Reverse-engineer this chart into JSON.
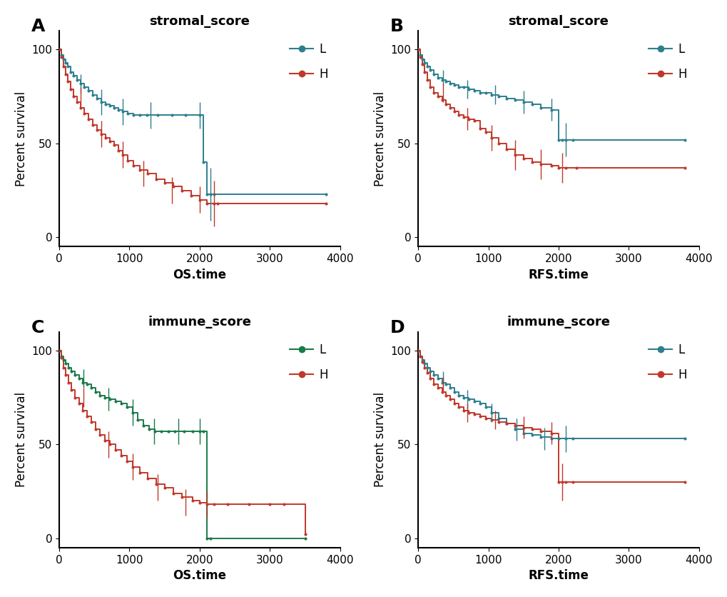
{
  "panels": [
    {
      "label": "A",
      "title": "stromal_score",
      "xlabel": "OS.time",
      "ylabel": "Percent survival",
      "xlim": [
        0,
        4000
      ],
      "ylim": [
        -5,
        110
      ],
      "xticks": [
        0,
        1000,
        2000,
        3000,
        4000
      ],
      "yticks": [
        0,
        50,
        100
      ],
      "L_color": "#2e7f8e",
      "H_color": "#c0392b",
      "L_curve": {
        "x": [
          0,
          30,
          60,
          90,
          120,
          160,
          200,
          250,
          300,
          360,
          420,
          480,
          540,
          600,
          660,
          720,
          780,
          840,
          900,
          980,
          1060,
          1150,
          1250,
          1400,
          1600,
          1800,
          2000,
          2050,
          2100,
          2150,
          2200,
          3800
        ],
        "y": [
          100,
          97,
          95,
          93,
          91,
          88,
          86,
          84,
          82,
          80,
          78,
          76,
          74,
          72,
          71,
          70,
          69,
          68,
          67,
          66,
          65,
          65,
          65,
          65,
          65,
          65,
          65,
          40,
          23,
          23,
          23,
          23
        ],
        "eb_x": [
          300,
          600,
          900,
          1300,
          2000,
          2150
        ],
        "eb_y": [
          82,
          72,
          67,
          65,
          65,
          23
        ],
        "eb_e": [
          5,
          7,
          7,
          7,
          7,
          14
        ]
      },
      "H_curve": {
        "x": [
          0,
          30,
          60,
          90,
          120,
          160,
          200,
          250,
          300,
          360,
          420,
          480,
          540,
          600,
          660,
          720,
          780,
          840,
          900,
          980,
          1060,
          1150,
          1260,
          1380,
          1500,
          1620,
          1750,
          1880,
          2000,
          2100,
          2200,
          2250,
          3800
        ],
        "y": [
          100,
          96,
          91,
          87,
          83,
          79,
          75,
          72,
          69,
          66,
          63,
          60,
          57,
          55,
          53,
          51,
          49,
          46,
          44,
          41,
          38,
          36,
          34,
          31,
          29,
          27,
          25,
          22,
          20,
          18,
          18,
          18,
          18
        ],
        "eb_x": [
          300,
          600,
          900,
          1200,
          1600,
          2000,
          2200
        ],
        "eb_y": [
          75,
          55,
          44,
          34,
          25,
          20,
          18
        ],
        "eb_e": [
          5,
          7,
          7,
          7,
          7,
          7,
          12
        ]
      }
    },
    {
      "label": "B",
      "title": "stromal_score",
      "xlabel": "RFS.time",
      "ylabel": "Percent survival",
      "xlim": [
        0,
        4000
      ],
      "ylim": [
        -5,
        110
      ],
      "xticks": [
        0,
        1000,
        2000,
        3000,
        4000
      ],
      "yticks": [
        0,
        50,
        100
      ],
      "L_color": "#2e7f8e",
      "H_color": "#c0392b",
      "L_curve": {
        "x": [
          0,
          30,
          60,
          90,
          130,
          170,
          220,
          280,
          340,
          400,
          460,
          520,
          580,
          650,
          720,
          800,
          880,
          960,
          1050,
          1150,
          1260,
          1380,
          1500,
          1620,
          1750,
          1900,
          2000,
          2050,
          2100,
          2200,
          3800
        ],
        "y": [
          100,
          97,
          95,
          93,
          91,
          89,
          87,
          85,
          84,
          83,
          82,
          81,
          80,
          80,
          79,
          78,
          77,
          77,
          76,
          75,
          74,
          73,
          72,
          71,
          69,
          68,
          52,
          52,
          52,
          52,
          52
        ],
        "eb_x": [
          350,
          700,
          1100,
          1500,
          1900,
          2100
        ],
        "eb_y": [
          85,
          79,
          76,
          72,
          68,
          52
        ],
        "eb_e": [
          4,
          5,
          5,
          6,
          6,
          9
        ]
      },
      "H_curve": {
        "x": [
          0,
          30,
          60,
          90,
          130,
          170,
          220,
          280,
          340,
          400,
          460,
          520,
          580,
          650,
          720,
          800,
          880,
          960,
          1050,
          1150,
          1260,
          1380,
          1500,
          1620,
          1750,
          1900,
          2000,
          2100,
          2250,
          3800
        ],
        "y": [
          100,
          96,
          92,
          88,
          84,
          80,
          77,
          75,
          73,
          71,
          69,
          67,
          65,
          64,
          63,
          62,
          58,
          56,
          53,
          50,
          47,
          44,
          42,
          40,
          39,
          38,
          37,
          37,
          37,
          37
        ],
        "eb_x": [
          350,
          700,
          1050,
          1380,
          1750,
          2050
        ],
        "eb_y": [
          77,
          63,
          53,
          44,
          39,
          37
        ],
        "eb_e": [
          5,
          6,
          7,
          8,
          8,
          8
        ]
      }
    },
    {
      "label": "C",
      "title": "immune_score",
      "xlabel": "OS.time",
      "ylabel": "Percent survival",
      "xlim": [
        0,
        4000
      ],
      "ylim": [
        -5,
        110
      ],
      "xticks": [
        0,
        1000,
        2000,
        3000,
        4000
      ],
      "yticks": [
        0,
        50,
        100
      ],
      "L_color": "#1a7a4a",
      "H_color": "#c0392b",
      "L_curve": {
        "x": [
          0,
          30,
          60,
          90,
          130,
          170,
          220,
          280,
          340,
          400,
          460,
          520,
          580,
          650,
          720,
          800,
          880,
          960,
          1050,
          1120,
          1200,
          1280,
          1360,
          1450,
          1550,
          1650,
          1780,
          1900,
          2000,
          2050,
          2100,
          2150,
          3500
        ],
        "y": [
          100,
          97,
          95,
          93,
          91,
          89,
          87,
          85,
          83,
          82,
          80,
          78,
          76,
          75,
          74,
          73,
          72,
          70,
          67,
          63,
          60,
          58,
          57,
          57,
          57,
          57,
          57,
          57,
          57,
          57,
          0,
          0,
          0
        ],
        "eb_x": [
          350,
          700,
          1050,
          1350,
          1700,
          2000
        ],
        "eb_y": [
          85,
          74,
          67,
          57,
          57,
          57
        ],
        "eb_e": [
          5,
          6,
          7,
          7,
          7,
          7
        ]
      },
      "H_curve": {
        "x": [
          0,
          30,
          60,
          90,
          130,
          170,
          220,
          280,
          340,
          400,
          460,
          520,
          580,
          650,
          720,
          800,
          880,
          960,
          1050,
          1150,
          1260,
          1380,
          1500,
          1620,
          1750,
          1900,
          2000,
          2100,
          2200,
          2400,
          2700,
          3000,
          3200,
          3500
        ],
        "y": [
          100,
          96,
          91,
          87,
          83,
          79,
          75,
          72,
          68,
          65,
          62,
          58,
          55,
          52,
          50,
          47,
          44,
          41,
          38,
          35,
          32,
          29,
          27,
          24,
          22,
          20,
          19,
          18,
          18,
          18,
          18,
          18,
          18,
          2
        ],
        "eb_x": [
          350,
          700,
          1050,
          1400,
          1800,
          2100
        ],
        "eb_y": [
          75,
          50,
          38,
          27,
          19,
          18
        ],
        "eb_e": [
          5,
          7,
          7,
          7,
          7,
          7
        ]
      }
    },
    {
      "label": "D",
      "title": "immune_score",
      "xlabel": "RFS.time",
      "ylabel": "Percent survival",
      "xlim": [
        0,
        4000
      ],
      "ylim": [
        -5,
        110
      ],
      "xticks": [
        0,
        1000,
        2000,
        3000,
        4000
      ],
      "yticks": [
        0,
        50,
        100
      ],
      "L_color": "#2e7f8e",
      "H_color": "#c0392b",
      "L_curve": {
        "x": [
          0,
          30,
          60,
          90,
          130,
          170,
          220,
          280,
          340,
          400,
          460,
          520,
          580,
          650,
          720,
          800,
          880,
          960,
          1050,
          1150,
          1260,
          1380,
          1500,
          1620,
          1750,
          1900,
          2000,
          2100,
          2200,
          3800
        ],
        "y": [
          100,
          97,
          95,
          93,
          91,
          89,
          87,
          85,
          83,
          82,
          80,
          78,
          76,
          75,
          74,
          73,
          72,
          70,
          67,
          64,
          61,
          58,
          56,
          55,
          54,
          53,
          53,
          53,
          53,
          53
        ],
        "eb_x": [
          350,
          700,
          1050,
          1400,
          1800,
          2100
        ],
        "eb_y": [
          85,
          74,
          67,
          58,
          53,
          53
        ],
        "eb_e": [
          4,
          5,
          5,
          6,
          6,
          7
        ]
      },
      "H_curve": {
        "x": [
          0,
          30,
          60,
          90,
          130,
          170,
          220,
          280,
          340,
          400,
          460,
          520,
          580,
          650,
          720,
          800,
          880,
          960,
          1050,
          1150,
          1260,
          1380,
          1500,
          1620,
          1750,
          1900,
          2000,
          2050,
          2100,
          2200,
          3800
        ],
        "y": [
          100,
          97,
          94,
          91,
          88,
          85,
          82,
          80,
          78,
          76,
          74,
          72,
          70,
          68,
          67,
          66,
          65,
          64,
          63,
          62,
          61,
          60,
          59,
          58,
          57,
          56,
          30,
          30,
          30,
          30,
          30
        ],
        "eb_x": [
          350,
          700,
          1100,
          1500,
          1900,
          2050
        ],
        "eb_y": [
          82,
          67,
          63,
          59,
          56,
          30
        ],
        "eb_e": [
          4,
          5,
          5,
          6,
          6,
          10
        ]
      }
    }
  ],
  "bg_color": "#ffffff",
  "panel_bg": "#ffffff",
  "label_fontsize": 18,
  "title_fontsize": 13,
  "axis_label_fontsize": 12,
  "tick_fontsize": 11,
  "legend_fontsize": 12
}
